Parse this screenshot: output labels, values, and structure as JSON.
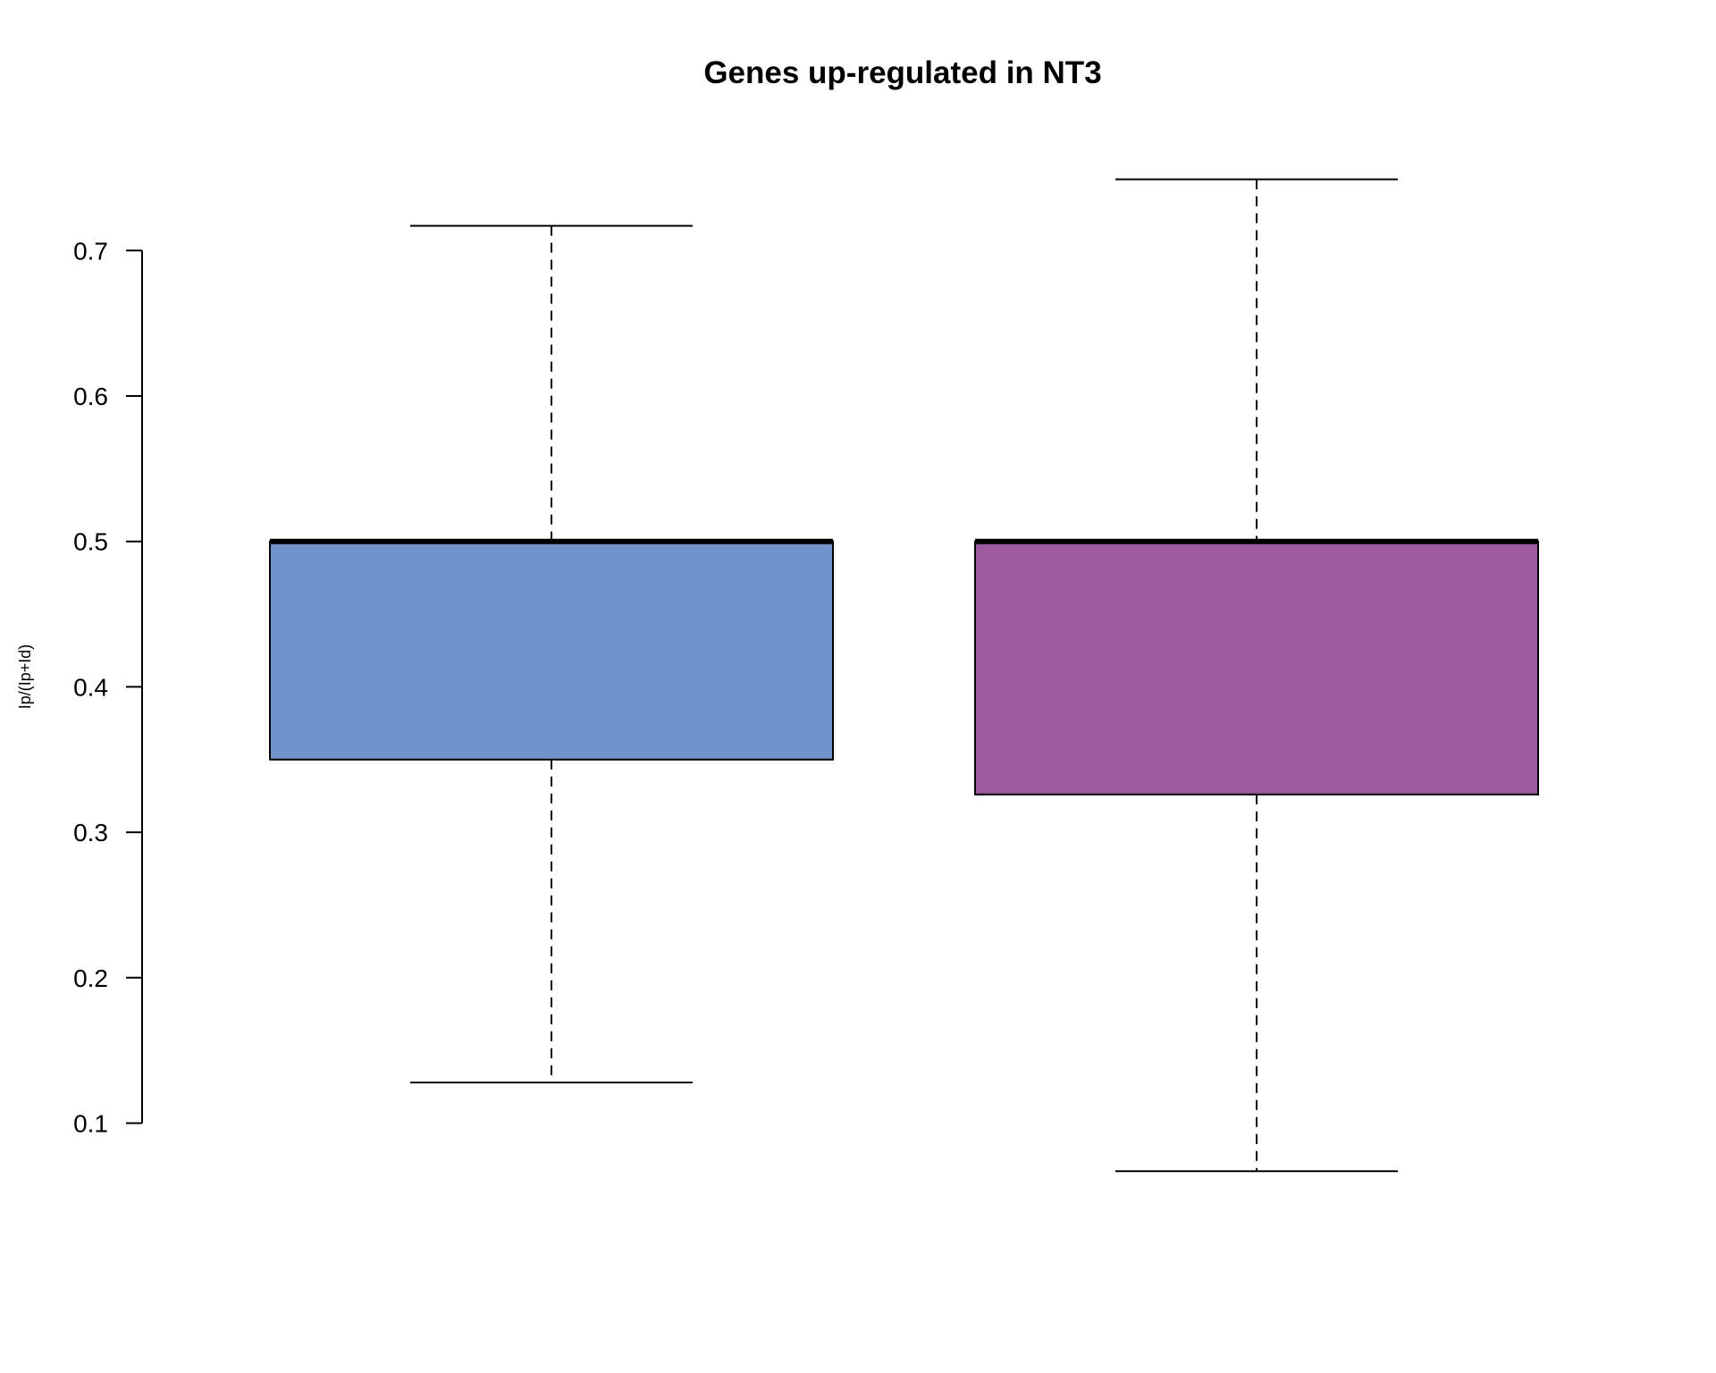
{
  "chart_data": {
    "type": "box",
    "title": "Genes up-regulated in NT3",
    "xlabel": "",
    "ylabel": "Ip/(Ip+Id)",
    "ylim": [
      0.03,
      0.78
    ],
    "yticks": [
      0.1,
      0.2,
      0.3,
      0.4,
      0.5,
      0.6,
      0.7
    ],
    "ytick_labels": [
      "0.1",
      "0.2",
      "0.3",
      "0.4",
      "0.5",
      "0.6",
      "0.7"
    ],
    "grid": false,
    "series": [
      {
        "min": 0.128,
        "q1": 0.35,
        "median": 0.5,
        "q3": 0.5,
        "max": 0.717,
        "color": "#7093CC"
      },
      {
        "min": 0.067,
        "q1": 0.326,
        "median": 0.5,
        "q3": 0.5,
        "max": 0.749,
        "color": "#9C5BA0"
      }
    ]
  }
}
